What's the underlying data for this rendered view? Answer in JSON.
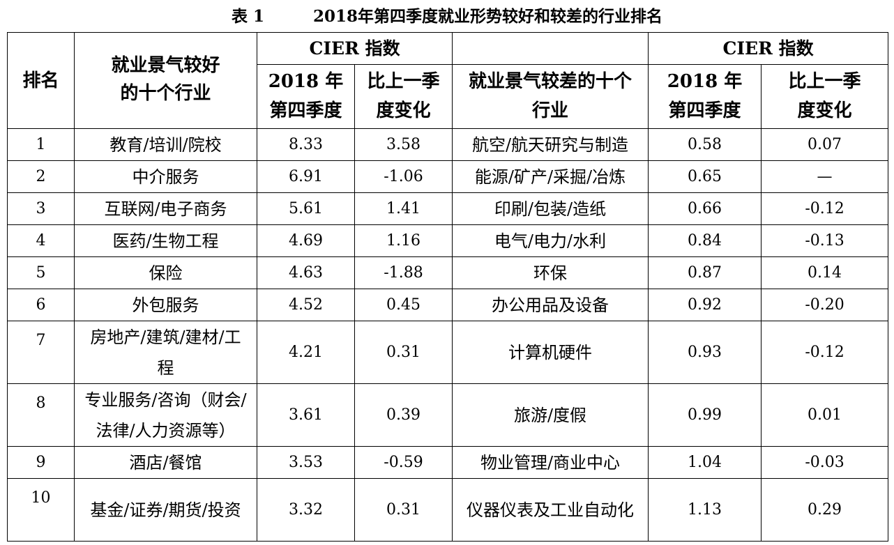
{
  "title": {
    "table_no": "表 1",
    "text": "2018年第四季度就业形势较好和较差的行业排名"
  },
  "header": {
    "rank": "排名",
    "good_industries": "就业景气较好的十个行业",
    "cier_index": "CIER 指数",
    "q4_2018": "2018 年第四季度",
    "change_left": "比上一季度变化",
    "bad_industries": "就业景气较差的十个行业",
    "change_right": "比上一季度变化"
  },
  "rows": [
    {
      "rank": "1",
      "good": "教育/培训/院校",
      "good_idx": "8.33",
      "good_chg": "3.58",
      "bad": "航空/航天研究与制造",
      "bad_idx": "0.58",
      "bad_chg": "0.07"
    },
    {
      "rank": "2",
      "good": "中介服务",
      "good_idx": "6.91",
      "good_chg": "-1.06",
      "bad": "能源/矿产/采掘/冶炼",
      "bad_idx": "0.65",
      "bad_chg": "—"
    },
    {
      "rank": "3",
      "good": "互联网/电子商务",
      "good_idx": "5.61",
      "good_chg": "1.41",
      "bad": "印刷/包装/造纸",
      "bad_idx": "0.66",
      "bad_chg": "-0.12"
    },
    {
      "rank": "4",
      "good": "医药/生物工程",
      "good_idx": "4.69",
      "good_chg": "1.16",
      "bad": "电气/电力/水利",
      "bad_idx": "0.84",
      "bad_chg": "-0.13"
    },
    {
      "rank": "5",
      "good": "保险",
      "good_idx": "4.63",
      "good_chg": "-1.88",
      "bad": "环保",
      "bad_idx": "0.87",
      "bad_chg": "0.14"
    },
    {
      "rank": "6",
      "good": "外包服务",
      "good_idx": "4.52",
      "good_chg": "0.45",
      "bad": "办公用品及设备",
      "bad_idx": "0.92",
      "bad_chg": "-0.20"
    },
    {
      "rank": "7",
      "good": "房地产/建筑/建材/工程",
      "good_idx": "4.21",
      "good_chg": "0.31",
      "bad": "计算机硬件",
      "bad_idx": "0.93",
      "bad_chg": "-0.12"
    },
    {
      "rank": "8",
      "good": "专业服务/咨询（财会/法律/人力资源等）",
      "good_idx": "3.61",
      "good_chg": "0.39",
      "bad": "旅游/度假",
      "bad_idx": "0.99",
      "bad_chg": "0.01"
    },
    {
      "rank": "9",
      "good": "酒店/餐馆",
      "good_idx": "3.53",
      "good_chg": "-0.59",
      "bad": "物业管理/商业中心",
      "bad_idx": "1.04",
      "bad_chg": "-0.03"
    },
    {
      "rank": "10",
      "good": "基金/证券/期货/投资",
      "good_idx": "3.32",
      "good_chg": "0.31",
      "bad": "仪器仪表及工业自动化",
      "bad_idx": "1.13",
      "bad_chg": "0.29"
    }
  ]
}
